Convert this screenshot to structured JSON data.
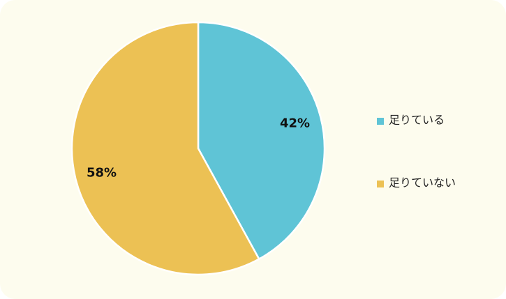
{
  "chart_data": {
    "type": "pie",
    "categories": [
      "足りている",
      "足りていない"
    ],
    "values": [
      42,
      58
    ],
    "value_labels": [
      "42%",
      "58%"
    ],
    "colors": [
      "#5fc4d6",
      "#ecc154"
    ]
  }
}
